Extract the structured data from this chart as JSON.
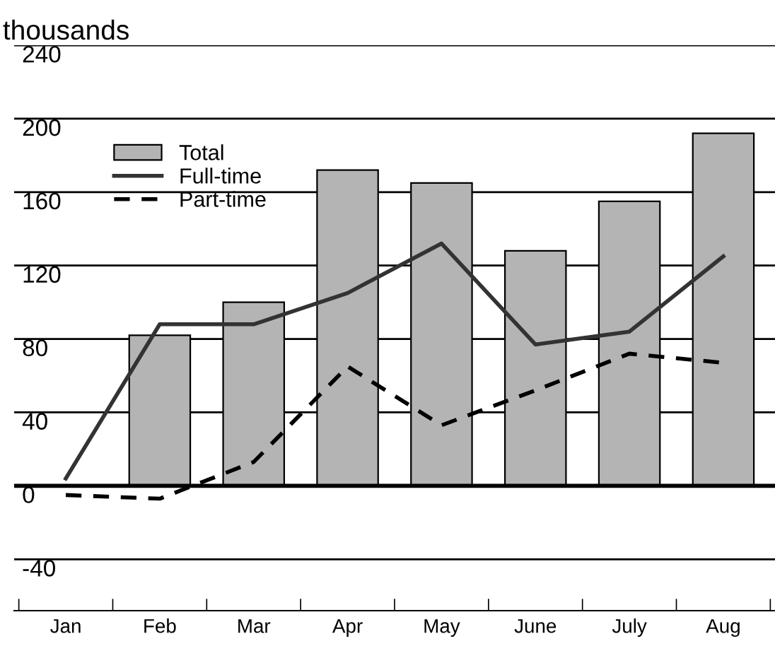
{
  "chart_data": {
    "type": "bar",
    "ylabel": "thousands",
    "categories": [
      "Jan",
      "Feb",
      "Mar",
      "Apr",
      "May",
      "June",
      "July",
      "Aug"
    ],
    "series": [
      {
        "name": "Total",
        "color": "#b4b4b4",
        "values": [
          null,
          82,
          100,
          172,
          165,
          128,
          155,
          192
        ]
      },
      {
        "name": "Full-time",
        "type": "line",
        "color": "#333333",
        "line_style": "solid",
        "values": [
          4,
          88,
          88,
          105,
          132,
          77,
          84,
          125
        ]
      },
      {
        "name": "Part-time",
        "type": "line",
        "color": "#000000",
        "line_style": "dashed",
        "values": [
          -5,
          -7,
          13,
          65,
          33,
          52,
          72,
          67
        ]
      }
    ],
    "ylim": [
      -68,
      240
    ],
    "yticks": [
      -40,
      0,
      40,
      80,
      120,
      160,
      200,
      240
    ],
    "grid": "y",
    "legend": "top left",
    "marker": "none"
  }
}
